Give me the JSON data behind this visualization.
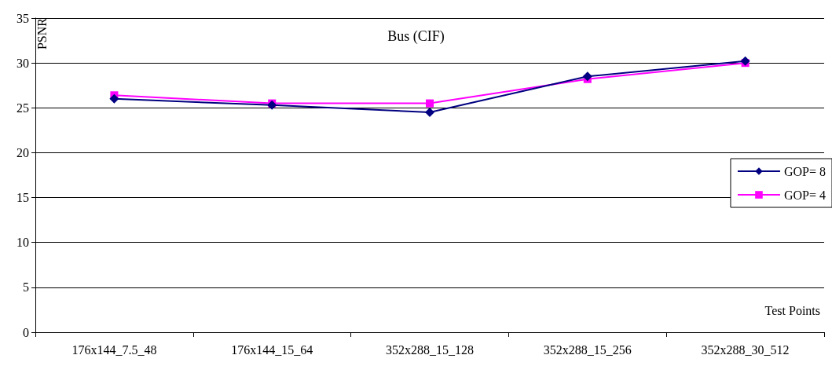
{
  "chart_data": {
    "type": "line",
    "title": "Bus (CIF)",
    "xlabel": "Test Points",
    "ylabel": "PSNR",
    "categories": [
      "176x144_7.5_48",
      "176x144_15_64",
      "352x288_15_128",
      "352x288_15_256",
      "352x288_30_512"
    ],
    "series": [
      {
        "name": "GOP= 8",
        "color": "#000080",
        "marker": "diamond",
        "values": [
          26.0,
          25.3,
          24.5,
          28.5,
          30.2
        ]
      },
      {
        "name": "GOP= 4",
        "color": "#ff00ff",
        "marker": "square",
        "values": [
          26.4,
          25.5,
          25.5,
          28.2,
          30.0
        ]
      }
    ],
    "ylim": [
      0,
      35
    ],
    "yticks": [
      0,
      5,
      10,
      15,
      20,
      25,
      30,
      35
    ],
    "grid": "y",
    "legend": "right",
    "line_style": "solid"
  }
}
